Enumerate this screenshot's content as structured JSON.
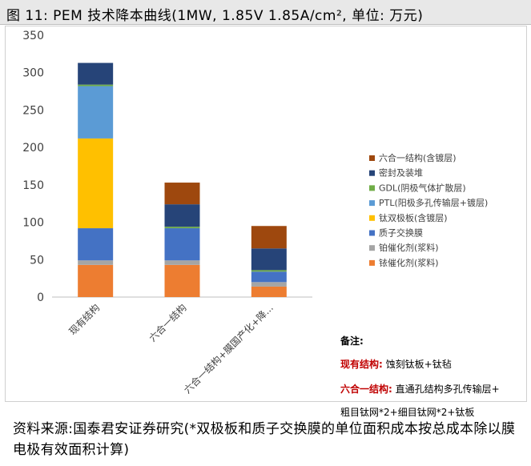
{
  "header": {
    "title": "图 11:  PEM 技术降本曲线(1MW, 1.85V 1.85A/cm², 单位: 万元)"
  },
  "chart_data": {
    "type": "bar",
    "stacked": true,
    "categories": [
      "现有结构",
      "六合一结构",
      "六合一结构+膜国产化+降..."
    ],
    "ylim": [
      0,
      350
    ],
    "yticks": [
      0,
      50,
      100,
      150,
      200,
      250,
      300,
      350
    ],
    "grid": false,
    "legend_position": "right",
    "series": [
      {
        "name": "铱催化剂(浆料)",
        "color": "#ed7d31",
        "values": [
          43,
          43,
          14
        ]
      },
      {
        "name": "铂催化剂(浆料)",
        "color": "#a5a5a5",
        "values": [
          6,
          6,
          6
        ]
      },
      {
        "name": "质子交换膜",
        "color": "#4472c4",
        "values": [
          43,
          43,
          14
        ]
      },
      {
        "name": "钛双极板(含镀层)",
        "color": "#ffc000",
        "values": [
          120,
          0,
          0
        ]
      },
      {
        "name": "PTL(阳极多孔传输层+镀层)",
        "color": "#5b9bd5",
        "values": [
          70,
          0,
          0
        ]
      },
      {
        "name": "GDL(阴极气体扩散层)",
        "color": "#70ad47",
        "values": [
          2,
          2,
          2
        ]
      },
      {
        "name": "密封及装堆",
        "color": "#264478",
        "values": [
          29,
          30,
          29
        ]
      },
      {
        "name": "六合一结构(含镀层)",
        "color": "#9e480e",
        "values": [
          0,
          29,
          30
        ]
      }
    ]
  },
  "notes": {
    "title": "备注:",
    "line1_label": "现有结构:",
    "line1_text": "蚀刻钛板+钛毡",
    "line2_label": "六合一结构:",
    "line2_text": "直通孔结构多孔传输层+",
    "line3_text": "粗目钛网*2+细目钛网*2+钛板"
  },
  "source": {
    "text": "资料来源:国泰君安证券研究(*双极板和质子交换膜的单位面积成本按总成本除以膜电极有效面积计算)"
  }
}
